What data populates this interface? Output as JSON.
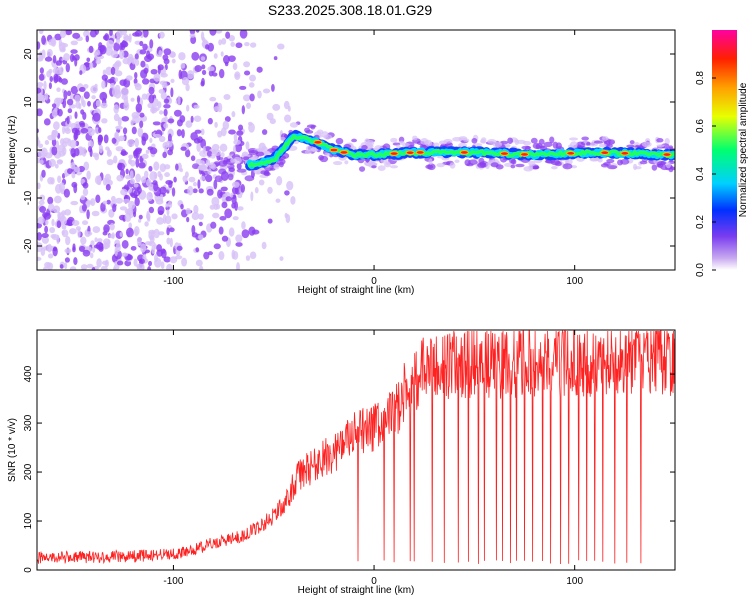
{
  "title": "S233.2025.308.18.01.G29",
  "colors": {
    "snr_line": "#ff2020",
    "dots": "#8a3cf0",
    "dots_light": "#d7c1f7"
  },
  "chart_data": [
    {
      "type": "heatmap",
      "name": "spectrogram",
      "xlabel": "Height of straight line (km)",
      "ylabel": "Frequency (Hz)",
      "xlim": [
        -168,
        150
      ],
      "ylim": [
        -25,
        25
      ],
      "xticks": [
        -100,
        0,
        100
      ],
      "yticks": [
        -20,
        -10,
        0,
        10,
        20
      ],
      "ridge": [
        {
          "x": -60,
          "y": -3
        },
        {
          "x": -50,
          "y": -2
        },
        {
          "x": -40,
          "y": 3
        },
        {
          "x": -30,
          "y": 2
        },
        {
          "x": -20,
          "y": 0
        },
        {
          "x": -10,
          "y": -1
        },
        {
          "x": 0,
          "y": -1
        },
        {
          "x": 20,
          "y": -0.5
        },
        {
          "x": 50,
          "y": -0.5
        },
        {
          "x": 80,
          "y": -1
        },
        {
          "x": 110,
          "y": -0.5
        },
        {
          "x": 150,
          "y": -1
        }
      ],
      "colorbar": {
        "label": "Normalized spectral amplitude",
        "range": [
          0,
          1
        ],
        "ticks": [
          "0.0",
          "0.2",
          "0.4",
          "0.6",
          "0.8"
        ]
      }
    },
    {
      "type": "line",
      "name": "snr",
      "xlabel": "Height of straight line (km)",
      "ylabel": "SNR (10 * v/v)",
      "xlim": [
        -168,
        150
      ],
      "ylim": [
        0,
        490
      ],
      "xticks": [
        -100,
        0,
        100
      ],
      "yticks": [
        0,
        100,
        200,
        300,
        400
      ],
      "trend": [
        {
          "x": -168,
          "y": 25
        },
        {
          "x": -120,
          "y": 28
        },
        {
          "x": -95,
          "y": 35
        },
        {
          "x": -80,
          "y": 55
        },
        {
          "x": -65,
          "y": 70
        },
        {
          "x": -55,
          "y": 95
        },
        {
          "x": -45,
          "y": 130
        },
        {
          "x": -38,
          "y": 190
        },
        {
          "x": -30,
          "y": 215
        },
        {
          "x": -20,
          "y": 240
        },
        {
          "x": -10,
          "y": 275
        },
        {
          "x": 0,
          "y": 290
        },
        {
          "x": 10,
          "y": 320
        },
        {
          "x": 15,
          "y": 360
        },
        {
          "x": 25,
          "y": 410
        },
        {
          "x": 40,
          "y": 420
        },
        {
          "x": 80,
          "y": 425
        },
        {
          "x": 120,
          "y": 430
        },
        {
          "x": 150,
          "y": 430
        }
      ],
      "dropouts": [
        -8,
        5,
        10,
        18,
        20,
        29,
        35,
        42,
        47,
        52,
        55,
        61,
        64,
        68,
        71,
        75,
        79,
        84,
        88,
        93,
        97,
        102,
        106,
        110,
        114,
        120,
        126,
        133
      ]
    }
  ]
}
